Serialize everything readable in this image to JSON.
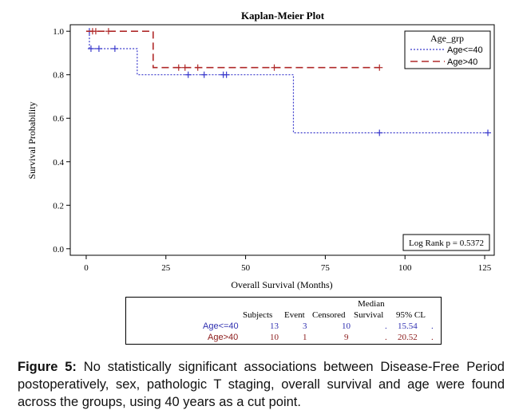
{
  "chart_data": {
    "type": "line",
    "subtype": "kaplan-meier step",
    "title": "Kaplan-Meier Plot",
    "xlabel": "Overall Survival (Months)",
    "ylabel": "Survival Probability",
    "xlim": [
      -5,
      128
    ],
    "ylim": [
      -0.03,
      1.03
    ],
    "xticks": [
      0,
      25,
      50,
      75,
      100,
      125
    ],
    "yticks": [
      0.0,
      0.2,
      0.4,
      0.6,
      0.8,
      1.0
    ],
    "ytick_labels": [
      "0.0",
      "0.2",
      "0.4",
      "0.6",
      "0.8",
      "1.0"
    ],
    "grid": false,
    "legend": {
      "title": "Age_grp",
      "placement": "top-right"
    },
    "annotation": "Log Rank p = 0.5372",
    "series": [
      {
        "name": "Age<=40",
        "color": "#3a3acc",
        "dash": "dotted",
        "steps": [
          [
            0,
            1.0
          ],
          [
            1,
            0.92
          ],
          [
            16,
            0.8
          ],
          [
            65,
            0.533
          ],
          [
            126,
            0.533
          ]
        ],
        "censored_x": [
          1,
          1.5,
          4,
          9,
          32,
          37,
          43,
          44,
          92,
          126
        ],
        "censored_y": [
          1.0,
          0.92,
          0.92,
          0.92,
          0.8,
          0.8,
          0.8,
          0.8,
          0.533,
          0.533
        ]
      },
      {
        "name": "Age>40",
        "color": "#b02a2a",
        "dash": "dashed",
        "steps": [
          [
            0,
            1.0
          ],
          [
            21,
            0.833
          ],
          [
            92,
            0.833
          ]
        ],
        "censored_x": [
          2,
          3,
          7,
          29,
          31,
          35,
          59,
          92
        ],
        "censored_y": [
          1.0,
          1.0,
          1.0,
          0.833,
          0.833,
          0.833,
          0.833,
          0.833
        ]
      }
    ]
  },
  "stats_table": {
    "header_top": "Median",
    "headers": [
      "Subjects",
      "Event",
      "Censored",
      "Survival",
      "95% CL"
    ],
    "rows": [
      {
        "group": "Age<=40",
        "subjects": "13",
        "event": "3",
        "censored": "10",
        "median": ".",
        "cl_low": "15.54",
        "cl_high": "."
      },
      {
        "group": "Age>40",
        "subjects": "10",
        "event": "1",
        "censored": "9",
        "median": ".",
        "cl_low": "20.52",
        "cl_high": "."
      }
    ]
  },
  "caption": {
    "label": "Figure 5:",
    "text": "No statistically significant associations between Disease-Free Period postoperatively, sex, pathologic T staging, overall survival and age were found across the groups, using 40 years as a cut point."
  }
}
